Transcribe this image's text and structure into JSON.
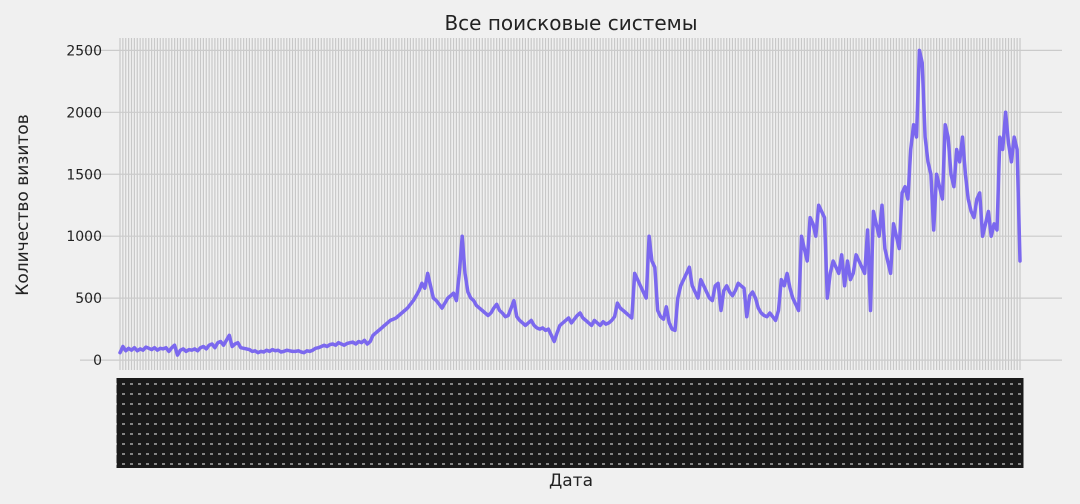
{
  "chart_data": {
    "type": "line",
    "title": "Все поисковые системы",
    "xlabel": "Дата",
    "ylabel": "Количество визитов",
    "ylim": [
      -80,
      2600
    ],
    "yticks": [
      0,
      500,
      1000,
      1500,
      2000,
      2500
    ],
    "grid": true,
    "x_tick_labels_note": "illegible dense rotated date labels",
    "series": [
      {
        "color": "#7b68ee",
        "values": [
          60,
          110,
          75,
          95,
          80,
          100,
          75,
          90,
          80,
          105,
          95,
          85,
          100,
          80,
          95,
          90,
          100,
          70,
          100,
          120,
          40,
          80,
          90,
          70,
          85,
          80,
          90,
          75,
          100,
          110,
          90,
          120,
          130,
          100,
          140,
          150,
          120,
          160,
          200,
          110,
          130,
          140,
          100,
          95,
          90,
          85,
          70,
          75,
          60,
          70,
          65,
          80,
          70,
          85,
          75,
          80,
          65,
          70,
          80,
          75,
          70,
          70,
          75,
          65,
          60,
          75,
          70,
          80,
          95,
          100,
          110,
          120,
          110,
          125,
          130,
          120,
          140,
          130,
          120,
          135,
          140,
          145,
          130,
          150,
          140,
          160,
          130,
          150,
          200,
          220,
          240,
          260,
          280,
          300,
          320,
          330,
          340,
          360,
          380,
          400,
          420,
          450,
          480,
          520,
          560,
          620,
          580,
          700,
          600,
          500,
          480,
          450,
          420,
          460,
          500,
          520,
          540,
          480,
          700,
          1000,
          700,
          550,
          500,
          480,
          440,
          420,
          400,
          380,
          360,
          380,
          420,
          450,
          400,
          380,
          350,
          360,
          420,
          480,
          350,
          320,
          300,
          280,
          300,
          320,
          280,
          260,
          250,
          260,
          240,
          250,
          200,
          150,
          220,
          280,
          300,
          320,
          340,
          300,
          330,
          360,
          380,
          340,
          320,
          300,
          280,
          320,
          300,
          280,
          310,
          290,
          300,
          320,
          350,
          460,
          420,
          400,
          380,
          360,
          340,
          700,
          650,
          600,
          550,
          500,
          1000,
          800,
          750,
          400,
          350,
          330,
          430,
          300,
          250,
          240,
          500,
          600,
          650,
          700,
          750,
          600,
          550,
          500,
          650,
          600,
          550,
          500,
          480,
          600,
          620,
          400,
          560,
          600,
          550,
          520,
          560,
          620,
          600,
          580,
          350,
          520,
          550,
          500,
          420,
          380,
          360,
          350,
          380,
          350,
          320,
          400,
          650,
          600,
          700,
          580,
          500,
          450,
          400,
          1000,
          900,
          800,
          1150,
          1100,
          1000,
          1250,
          1200,
          1150,
          500,
          700,
          800,
          750,
          700,
          850,
          600,
          800,
          650,
          700,
          850,
          800,
          750,
          700,
          1050,
          400,
          1200,
          1100,
          1000,
          1250,
          900,
          800,
          700,
          1100,
          1000,
          900,
          1350,
          1400,
          1300,
          1700,
          1900,
          1800,
          2500,
          2400,
          1800,
          1600,
          1500,
          1050,
          1500,
          1400,
          1300,
          1900,
          1800,
          1500,
          1400,
          1700,
          1600,
          1800,
          1500,
          1300,
          1200,
          1150,
          1300,
          1350,
          1000,
          1100,
          1200,
          1000,
          1100,
          1050,
          1800,
          1700,
          2000,
          1750,
          1600,
          1800,
          1700,
          800
        ]
      }
    ]
  }
}
